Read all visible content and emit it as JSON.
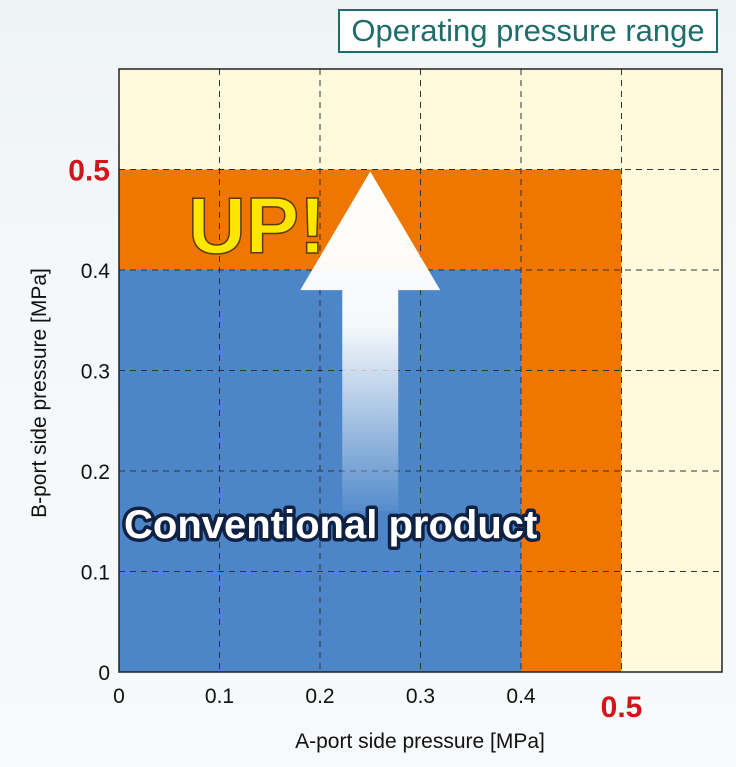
{
  "title": "Operating pressure range",
  "chart_data": {
    "type": "area",
    "xlabel": "A-port side pressure [MPa]",
    "ylabel": "B-port side pressure  [MPa]",
    "xlim": [
      0,
      0.6
    ],
    "ylim": [
      0,
      0.6
    ],
    "x_ticks": [
      {
        "value": 0,
        "label": "0"
      },
      {
        "value": 0.1,
        "label": "0.1"
      },
      {
        "value": 0.2,
        "label": "0.2"
      },
      {
        "value": 0.3,
        "label": "0.3"
      },
      {
        "value": 0.4,
        "label": "0.4"
      }
    ],
    "y_ticks": [
      {
        "value": 0,
        "label": "0"
      },
      {
        "value": 0.1,
        "label": "0.1"
      },
      {
        "value": 0.2,
        "label": "0.2"
      },
      {
        "value": 0.3,
        "label": "0.3"
      },
      {
        "value": 0.4,
        "label": "0.4"
      }
    ],
    "highlight_x": {
      "value": 0.5,
      "label": "0.5"
    },
    "highlight_y": {
      "value": 0.5,
      "label": "0.5"
    },
    "grid": true,
    "regions": [
      {
        "name": "",
        "x_max": 0.5,
        "y_max": 0.5,
        "color": "#ee7601"
      },
      {
        "name": "Conventional product",
        "x_max": 0.4,
        "y_max": 0.4,
        "color": "#4d86c8"
      }
    ],
    "annotations": {
      "up": "UP!",
      "conventional": "Conventional product"
    },
    "colors": {
      "plot_background": "#fffadc",
      "new_range": "#ee7601",
      "conventional_range": "#4d86c8",
      "highlight_text": "#d4141a",
      "up_text": "#ffe600",
      "title_border": "#1f6d6a"
    }
  }
}
